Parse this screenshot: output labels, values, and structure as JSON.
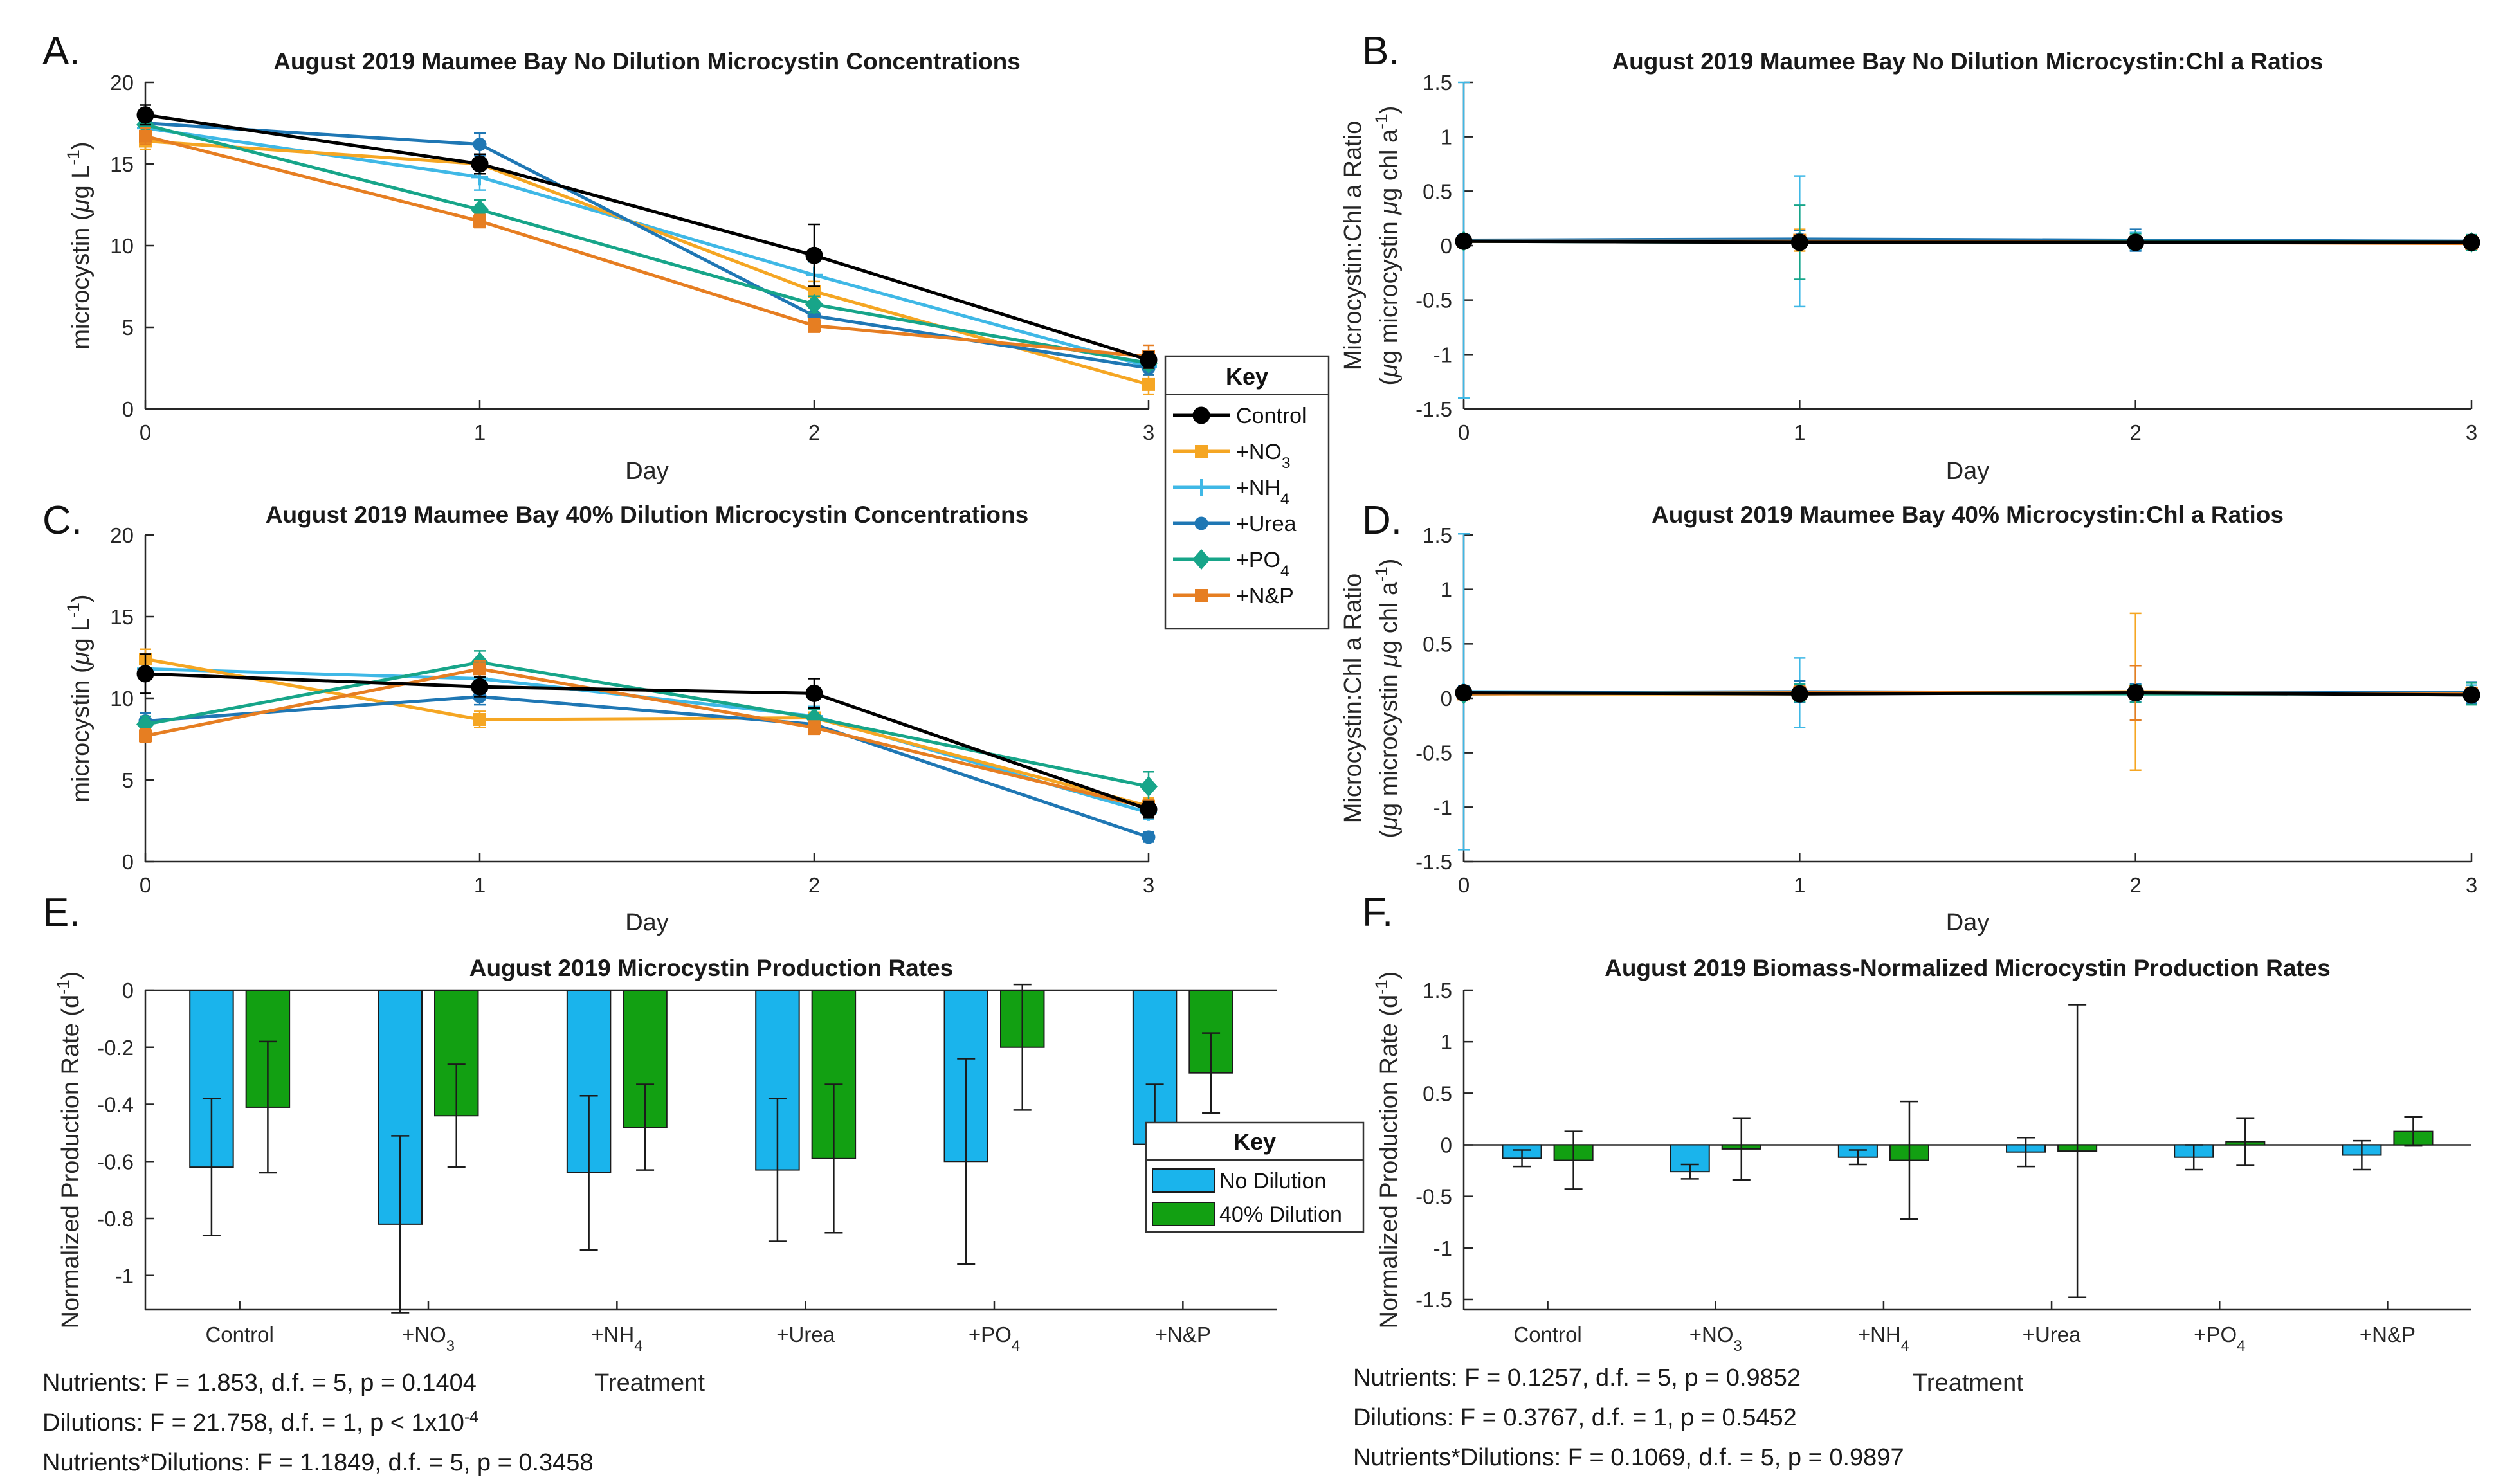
{
  "legends": {
    "line_key": {
      "title": "Key",
      "entries": [
        {
          "name": "Control",
          "sub": "",
          "color": "#000000",
          "marker": "circle"
        },
        {
          "name": "+NO",
          "sub": "3",
          "color": "#F5A623",
          "marker": "square"
        },
        {
          "name": "+NH",
          "sub": "4",
          "color": "#3FB8E6",
          "marker": "plus"
        },
        {
          "name": "+Urea",
          "sub": "",
          "color": "#1F77B4",
          "marker": "dot"
        },
        {
          "name": "+PO",
          "sub": "4",
          "color": "#17A589",
          "marker": "diamond"
        },
        {
          "name": "+N&P",
          "sub": "",
          "color": "#E67E22",
          "marker": "square"
        }
      ]
    },
    "bar_key": {
      "title": "Key",
      "entries": [
        {
          "name": "No Dilution",
          "color": "#1AB4EC"
        },
        {
          "name": "40% Dilution",
          "color": "#12A012"
        }
      ]
    }
  },
  "stats": {
    "E": [
      {
        "text": "Nutrients: F = 1.853, d.f. = 5, p = 0.1404"
      },
      {
        "text": "Dilutions: F = 21.758, d.f. = 1, p < 1x10",
        "sup": "-4"
      },
      {
        "text": "Nutrients*Dilutions: F = 1.1849, d.f. = 5, p = 0.3458"
      }
    ],
    "F": [
      {
        "text": "Nutrients: F = 0.1257, d.f. = 5, p = 0.9852"
      },
      {
        "text": "Dilutions: F = 0.3767, d.f. = 1, p = 0.5452"
      },
      {
        "text": "Nutrients*Dilutions: F = 0.1069, d.f. = 5, p = 0.9897"
      }
    ]
  },
  "chart_data": [
    {
      "id": "A",
      "letter": "A.",
      "type": "line",
      "title": "August 2019 Maumee Bay No Dilution Microcystin Concentrations",
      "xlabel": "Day",
      "ylabel_parts": [
        {
          "t": "microcystin (",
          "s": ""
        },
        {
          "t": "μ",
          "s": "italic"
        },
        {
          "t": "g L",
          "s": ""
        },
        {
          "t": "-1",
          "s": "sup"
        },
        {
          "t": ")",
          "s": ""
        }
      ],
      "ylabel_lines": null,
      "xlim": [
        0,
        3
      ],
      "ylim": [
        0,
        20
      ],
      "xticks": [
        {
          "v": 0,
          "label": "0"
        },
        {
          "v": 1,
          "label": "1"
        },
        {
          "v": 2,
          "label": "2"
        },
        {
          "v": 3,
          "label": "3"
        }
      ],
      "yticks": [
        {
          "v": 0,
          "label": "0"
        },
        {
          "v": 5,
          "label": "5"
        },
        {
          "v": 10,
          "label": "10"
        },
        {
          "v": 15,
          "label": "15"
        },
        {
          "v": 20,
          "label": "20"
        }
      ],
      "x": [
        0,
        1,
        2,
        3
      ],
      "series": [
        {
          "name": "+NH4",
          "color": "#3FB8E6",
          "marker": "plus",
          "values": [
            17.2,
            14.2,
            8.2,
            2.6
          ],
          "errors": [
            0.6,
            0.8,
            0.8,
            0.5
          ]
        },
        {
          "name": "+NO3",
          "color": "#F5A623",
          "marker": "square",
          "values": [
            16.4,
            15.0,
            7.2,
            1.5
          ],
          "errors": [
            0.5,
            0.6,
            0.6,
            0.6
          ]
        },
        {
          "name": "+Urea",
          "color": "#1F77B4",
          "marker": "dot",
          "values": [
            17.5,
            16.2,
            5.7,
            2.5
          ],
          "errors": [
            0.5,
            0.7,
            0.5,
            0.4
          ]
        },
        {
          "name": "+PO4",
          "color": "#17A589",
          "marker": "diamond",
          "values": [
            17.4,
            12.2,
            6.4,
            2.8
          ],
          "errors": [
            0.6,
            0.6,
            0.5,
            0.4
          ]
        },
        {
          "name": "+N&P",
          "color": "#E67E22",
          "marker": "square",
          "values": [
            16.7,
            11.5,
            5.1,
            3.2
          ],
          "errors": [
            0.5,
            0.4,
            0.4,
            0.7
          ]
        },
        {
          "name": "Control",
          "color": "#000000",
          "marker": "circle",
          "values": [
            18.0,
            15.0,
            9.4,
            3.0
          ],
          "errors": [
            0.6,
            0.6,
            1.9,
            0.5
          ]
        }
      ]
    },
    {
      "id": "B",
      "letter": "B.",
      "type": "line",
      "title": "August 2019 Maumee Bay No Dilution Microcystin:Chl a Ratios",
      "xlabel": "Day",
      "ylabel_parts": null,
      "ylabel_lines": [
        [
          {
            "t": "Microcystin:Chl a Ratio",
            "s": ""
          }
        ],
        [
          {
            "t": "(",
            "s": ""
          },
          {
            "t": "μ",
            "s": "italic"
          },
          {
            "t": "g microcystin ",
            "s": ""
          },
          {
            "t": "μ",
            "s": "italic"
          },
          {
            "t": "g chl a",
            "s": ""
          },
          {
            "t": "-1",
            "s": "sup"
          },
          {
            "t": ")",
            "s": ""
          }
        ]
      ],
      "xlim": [
        0,
        3
      ],
      "ylim": [
        -1.5,
        1.5
      ],
      "xticks": [
        {
          "v": 0,
          "label": "0"
        },
        {
          "v": 1,
          "label": "1"
        },
        {
          "v": 2,
          "label": "2"
        },
        {
          "v": 3,
          "label": "3"
        }
      ],
      "yticks": [
        {
          "v": -1.5,
          "label": "-1.5"
        },
        {
          "v": -1,
          "label": "-1"
        },
        {
          "v": -0.5,
          "label": "-0.5"
        },
        {
          "v": 0,
          "label": "0"
        },
        {
          "v": 0.5,
          "label": "0.5"
        },
        {
          "v": 1,
          "label": "1"
        },
        {
          "v": 1.5,
          "label": "1.5"
        }
      ],
      "x": [
        0,
        1,
        2,
        3
      ],
      "series": [
        {
          "name": "+NH4",
          "color": "#3FB8E6",
          "marker": "plus",
          "values": [
            0.05,
            0.04,
            0.04,
            0.03
          ],
          "errors": [
            1.45,
            0.6,
            0.08,
            0.06
          ]
        },
        {
          "name": "+NO3",
          "color": "#F5A623",
          "marker": "square",
          "values": [
            0.04,
            0.05,
            0.03,
            0.03
          ],
          "errors": [
            0.04,
            0.1,
            0.05,
            0.05
          ]
        },
        {
          "name": "+Urea",
          "color": "#1F77B4",
          "marker": "dot",
          "values": [
            0.05,
            0.06,
            0.05,
            0.04
          ],
          "errors": [
            0.05,
            0.08,
            0.1,
            0.06
          ]
        },
        {
          "name": "+PO4",
          "color": "#17A589",
          "marker": "diamond",
          "values": [
            0.04,
            0.03,
            0.04,
            0.03
          ],
          "errors": [
            0.04,
            0.34,
            0.07,
            0.07
          ]
        },
        {
          "name": "+N&P",
          "color": "#E67E22",
          "marker": "square",
          "values": [
            0.04,
            0.04,
            0.03,
            0.02
          ],
          "errors": [
            0.03,
            0.06,
            0.05,
            0.05
          ]
        },
        {
          "name": "Control",
          "color": "#000000",
          "marker": "circle",
          "values": [
            0.04,
            0.03,
            0.03,
            0.03
          ],
          "errors": [
            0.03,
            0.05,
            0.05,
            0.05
          ]
        }
      ]
    },
    {
      "id": "C",
      "letter": "C.",
      "type": "line",
      "title": "August 2019 Maumee Bay 40% Dilution Microcystin Concentrations",
      "xlabel": "Day",
      "ylabel_parts": [
        {
          "t": "microcystin (",
          "s": ""
        },
        {
          "t": "μ",
          "s": "italic"
        },
        {
          "t": "g L",
          "s": ""
        },
        {
          "t": "-1",
          "s": "sup"
        },
        {
          "t": ")",
          "s": ""
        }
      ],
      "ylabel_lines": null,
      "xlim": [
        0,
        3
      ],
      "ylim": [
        0,
        20
      ],
      "xticks": [
        {
          "v": 0,
          "label": "0"
        },
        {
          "v": 1,
          "label": "1"
        },
        {
          "v": 2,
          "label": "2"
        },
        {
          "v": 3,
          "label": "3"
        }
      ],
      "yticks": [
        {
          "v": 0,
          "label": "0"
        },
        {
          "v": 5,
          "label": "5"
        },
        {
          "v": 10,
          "label": "10"
        },
        {
          "v": 15,
          "label": "15"
        },
        {
          "v": 20,
          "label": "20"
        }
      ],
      "x": [
        0,
        1,
        2,
        3
      ],
      "series": [
        {
          "name": "+NH4",
          "color": "#3FB8E6",
          "marker": "plus",
          "values": [
            11.8,
            11.2,
            8.9,
            3.0
          ],
          "errors": [
            0.6,
            0.6,
            0.6,
            0.4
          ]
        },
        {
          "name": "+NO3",
          "color": "#F5A623",
          "marker": "square",
          "values": [
            12.4,
            8.7,
            8.8,
            3.4
          ],
          "errors": [
            0.6,
            0.5,
            0.5,
            0.5
          ]
        },
        {
          "name": "+Urea",
          "color": "#1F77B4",
          "marker": "dot",
          "values": [
            8.6,
            10.1,
            8.4,
            1.5
          ],
          "errors": [
            0.5,
            0.5,
            0.5,
            0.3
          ]
        },
        {
          "name": "+PO4",
          "color": "#17A589",
          "marker": "diamond",
          "values": [
            8.4,
            12.2,
            8.8,
            4.6
          ],
          "errors": [
            0.5,
            0.7,
            0.5,
            0.9
          ]
        },
        {
          "name": "+N&P",
          "color": "#E67E22",
          "marker": "square",
          "values": [
            7.7,
            11.8,
            8.2,
            3.3
          ],
          "errors": [
            0.4,
            0.5,
            0.4,
            0.5
          ]
        },
        {
          "name": "Control",
          "color": "#000000",
          "marker": "circle",
          "values": [
            11.5,
            10.7,
            10.3,
            3.2
          ],
          "errors": [
            1.2,
            0.6,
            0.9,
            0.5
          ]
        }
      ]
    },
    {
      "id": "D",
      "letter": "D.",
      "type": "line",
      "title": "August 2019 Maumee Bay 40% Microcystin:Chl a Ratios",
      "xlabel": "Day",
      "ylabel_parts": null,
      "ylabel_lines": [
        [
          {
            "t": "Microcystin:Chl a Ratio",
            "s": ""
          }
        ],
        [
          {
            "t": "(",
            "s": ""
          },
          {
            "t": "μ",
            "s": "italic"
          },
          {
            "t": "g microcystin ",
            "s": ""
          },
          {
            "t": "μ",
            "s": "italic"
          },
          {
            "t": "g chl a",
            "s": ""
          },
          {
            "t": "-1",
            "s": "sup"
          },
          {
            "t": ")",
            "s": ""
          }
        ]
      ],
      "xlim": [
        0,
        3
      ],
      "ylim": [
        -1.5,
        1.5
      ],
      "xticks": [
        {
          "v": 0,
          "label": "0"
        },
        {
          "v": 1,
          "label": "1"
        },
        {
          "v": 2,
          "label": "2"
        },
        {
          "v": 3,
          "label": "3"
        }
      ],
      "yticks": [
        {
          "v": -1.5,
          "label": "-1.5"
        },
        {
          "v": -1,
          "label": "-1"
        },
        {
          "v": -0.5,
          "label": "-0.5"
        },
        {
          "v": 0,
          "label": "0"
        },
        {
          "v": 0.5,
          "label": "0.5"
        },
        {
          "v": 1,
          "label": "1"
        },
        {
          "v": 1.5,
          "label": "1.5"
        }
      ],
      "x": [
        0,
        1,
        2,
        3
      ],
      "series": [
        {
          "name": "+NH4",
          "color": "#3FB8E6",
          "marker": "plus",
          "values": [
            0.06,
            0.05,
            0.05,
            0.04
          ],
          "errors": [
            1.45,
            0.32,
            0.25,
            0.08
          ]
        },
        {
          "name": "+NO3",
          "color": "#F5A623",
          "marker": "square",
          "values": [
            0.04,
            0.04,
            0.06,
            0.04
          ],
          "errors": [
            0.05,
            0.08,
            0.72,
            0.06
          ]
        },
        {
          "name": "+Urea",
          "color": "#1F77B4",
          "marker": "dot",
          "values": [
            0.05,
            0.06,
            0.05,
            0.05
          ],
          "errors": [
            0.06,
            0.1,
            0.08,
            0.1
          ]
        },
        {
          "name": "+PO4",
          "color": "#17A589",
          "marker": "diamond",
          "values": [
            0.04,
            0.05,
            0.04,
            0.04
          ],
          "errors": [
            0.05,
            0.08,
            0.08,
            0.1
          ]
        },
        {
          "name": "+N&P",
          "color": "#E67E22",
          "marker": "square",
          "values": [
            0.04,
            0.05,
            0.05,
            0.04
          ],
          "errors": [
            0.04,
            0.06,
            0.25,
            0.06
          ]
        },
        {
          "name": "Control",
          "color": "#000000",
          "marker": "circle",
          "values": [
            0.05,
            0.04,
            0.05,
            0.03
          ],
          "errors": [
            0.05,
            0.05,
            0.06,
            0.05
          ]
        }
      ]
    },
    {
      "id": "E",
      "letter": "E.",
      "type": "bar",
      "title": "August 2019 Microcystin Production Rates",
      "xlabel": "Treatment",
      "ylabel_parts": [
        {
          "t": "Normalized Production Rate (d",
          "s": ""
        },
        {
          "t": "-1",
          "s": "sup"
        },
        {
          "t": ")",
          "s": ""
        }
      ],
      "ylabel_lines": null,
      "ylim": [
        -1.12,
        0
      ],
      "yticks": [
        {
          "v": -1,
          "label": "-1"
        },
        {
          "v": -0.8,
          "label": "-0.8"
        },
        {
          "v": -0.6,
          "label": "-0.6"
        },
        {
          "v": -0.4,
          "label": "-0.4"
        },
        {
          "v": -0.2,
          "label": "-0.2"
        },
        {
          "v": 0,
          "label": "0"
        }
      ],
      "categories": [
        {
          "label": "Control",
          "sub": ""
        },
        {
          "label": "+NO",
          "sub": "3"
        },
        {
          "label": "+NH",
          "sub": "4"
        },
        {
          "label": "+Urea",
          "sub": ""
        },
        {
          "label": "+PO",
          "sub": "4"
        },
        {
          "label": "+N&P",
          "sub": ""
        }
      ],
      "series": [
        {
          "name": "No Dilution",
          "color": "#1AB4EC",
          "values": [
            -0.62,
            -0.82,
            -0.64,
            -0.63,
            -0.6,
            -0.54
          ],
          "errors": [
            0.24,
            0.31,
            0.27,
            0.25,
            0.36,
            0.21
          ]
        },
        {
          "name": "40% Dilution",
          "color": "#12A012",
          "values": [
            -0.41,
            -0.44,
            -0.48,
            -0.59,
            -0.2,
            -0.29
          ],
          "errors": [
            0.23,
            0.18,
            0.15,
            0.26,
            0.22,
            0.14
          ]
        }
      ]
    },
    {
      "id": "F",
      "letter": "F.",
      "type": "bar",
      "title": "August 2019 Biomass-Normalized Microcystin Production Rates",
      "xlabel": "Treatment",
      "ylabel_parts": [
        {
          "t": "Normalized Production Rate (d",
          "s": ""
        },
        {
          "t": "-1",
          "s": "sup"
        },
        {
          "t": ")",
          "s": ""
        }
      ],
      "ylabel_lines": null,
      "ylim": [
        -1.6,
        1.5
      ],
      "yticks": [
        {
          "v": -1.5,
          "label": "-1.5"
        },
        {
          "v": -1,
          "label": "-1"
        },
        {
          "v": -0.5,
          "label": "-0.5"
        },
        {
          "v": 0,
          "label": "0"
        },
        {
          "v": 0.5,
          "label": "0.5"
        },
        {
          "v": 1,
          "label": "1"
        },
        {
          "v": 1.5,
          "label": "1.5"
        }
      ],
      "categories": [
        {
          "label": "Control",
          "sub": ""
        },
        {
          "label": "+NO",
          "sub": "3"
        },
        {
          "label": "+NH",
          "sub": "4"
        },
        {
          "label": "+Urea",
          "sub": ""
        },
        {
          "label": "+PO",
          "sub": "4"
        },
        {
          "label": "+N&P",
          "sub": ""
        }
      ],
      "series": [
        {
          "name": "No Dilution",
          "color": "#1AB4EC",
          "values": [
            -0.13,
            -0.26,
            -0.12,
            -0.07,
            -0.12,
            -0.1
          ],
          "errors": [
            0.08,
            0.07,
            0.07,
            0.14,
            0.12,
            0.14
          ]
        },
        {
          "name": "40% Dilution",
          "color": "#12A012",
          "values": [
            -0.15,
            -0.04,
            -0.15,
            -0.06,
            0.03,
            0.13
          ],
          "errors": [
            0.28,
            0.3,
            0.57,
            1.42,
            0.23,
            0.14
          ]
        }
      ]
    }
  ]
}
